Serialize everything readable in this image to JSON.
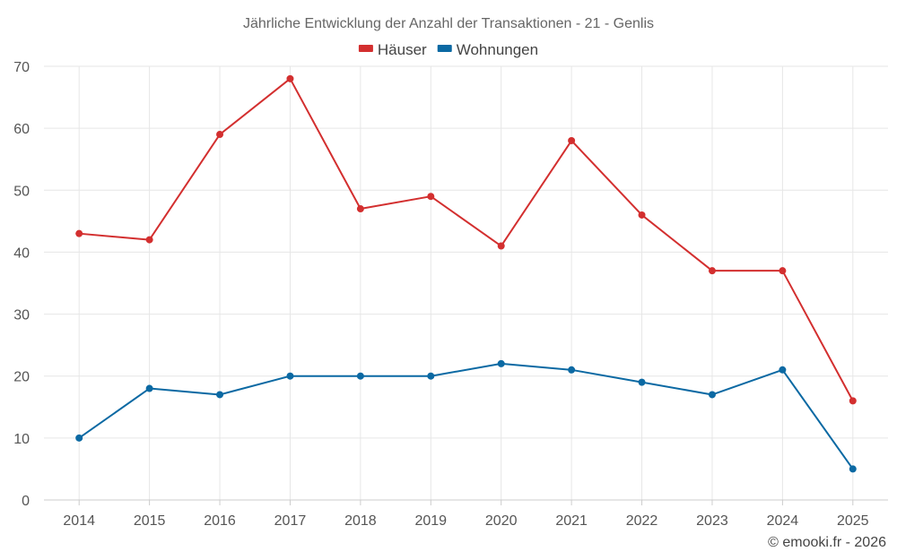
{
  "chart_data": {
    "type": "line",
    "title": "Jährliche Entwicklung der Anzahl der Transaktionen - 21 - Genlis",
    "xlabel": "",
    "ylabel": "",
    "categories": [
      "2014",
      "2015",
      "2016",
      "2017",
      "2018",
      "2019",
      "2020",
      "2021",
      "2022",
      "2023",
      "2024",
      "2025"
    ],
    "ylim": [
      0,
      70
    ],
    "yticks": [
      0,
      10,
      20,
      30,
      40,
      50,
      60,
      70
    ],
    "grid": true,
    "legend_position": "top-center",
    "series": [
      {
        "name": "Häuser",
        "color": "#d32f2f",
        "values": [
          43,
          42,
          59,
          68,
          47,
          49,
          41,
          58,
          46,
          37,
          37,
          16
        ]
      },
      {
        "name": "Wohnungen",
        "color": "#0b69a3",
        "values": [
          10,
          18,
          17,
          20,
          20,
          20,
          22,
          21,
          19,
          17,
          21,
          5
        ]
      }
    ]
  },
  "credit": "© emooki.fr - 2026"
}
